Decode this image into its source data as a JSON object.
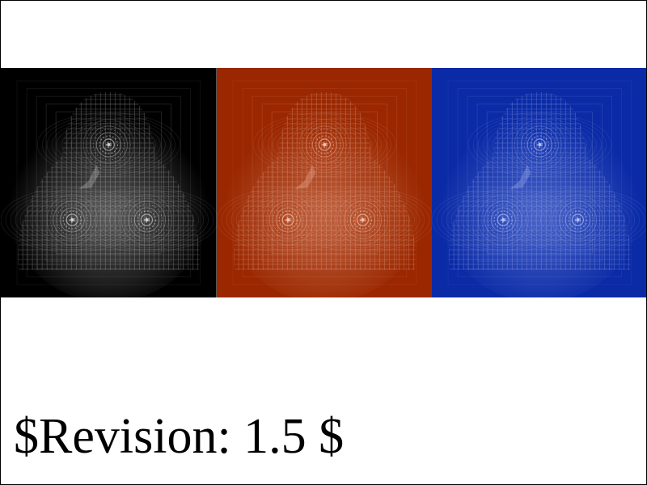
{
  "revision_text": "$Revision: 1.5 $",
  "panels": [
    {
      "name": "black",
      "bg": "#000000",
      "glow": "#ffffff",
      "ring": "#e6e6e6"
    },
    {
      "name": "red",
      "bg": "#9a2700",
      "glow": "#ffc9b0",
      "ring": "#ffd6c4"
    },
    {
      "name": "blue",
      "bg": "#0a2aa6",
      "glow": "#b8c6ff",
      "ring": "#c8d4ff"
    }
  ]
}
